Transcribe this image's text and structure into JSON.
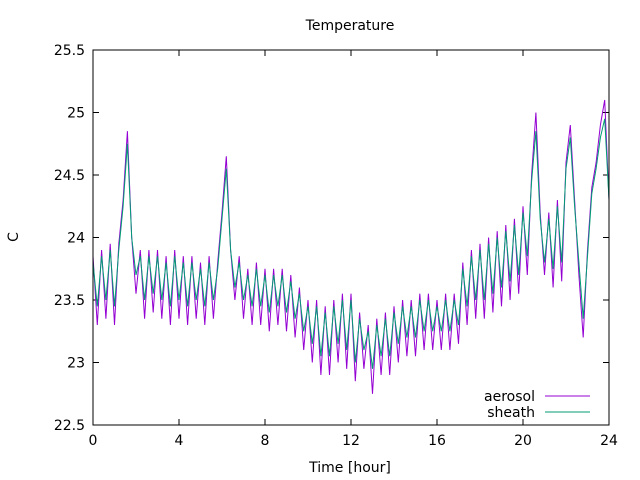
{
  "chart_data": {
    "type": "line",
    "title": "Temperature",
    "xlabel": "Time [hour]",
    "ylabel": "C",
    "xlim": [
      0,
      24
    ],
    "ylim": [
      22.5,
      25.5
    ],
    "xticks": [
      0,
      4,
      8,
      12,
      16,
      20,
      24
    ],
    "yticks": [
      22.5,
      23,
      23.5,
      24,
      24.5,
      25,
      25.5
    ],
    "ytick_labels": [
      "22.5",
      "23",
      "23.5",
      "24",
      "24.5",
      "25",
      "25.5"
    ],
    "legend_position": "bottom-right",
    "x_step": 0.2,
    "series": [
      {
        "name": "aerosol",
        "color": "#9400d3",
        "values": [
          23.85,
          23.3,
          23.9,
          23.35,
          23.95,
          23.3,
          23.95,
          24.3,
          24.85,
          24.0,
          23.55,
          23.9,
          23.35,
          23.9,
          23.4,
          23.9,
          23.35,
          23.85,
          23.3,
          23.9,
          23.35,
          23.85,
          23.3,
          23.85,
          23.35,
          23.8,
          23.3,
          23.85,
          23.35,
          23.8,
          24.2,
          24.65,
          23.9,
          23.5,
          23.85,
          23.35,
          23.75,
          23.3,
          23.8,
          23.3,
          23.75,
          23.25,
          23.75,
          23.3,
          23.75,
          23.25,
          23.7,
          23.2,
          23.6,
          23.1,
          23.5,
          23.0,
          23.5,
          22.9,
          23.45,
          22.9,
          23.5,
          23.0,
          23.55,
          22.95,
          23.55,
          22.85,
          23.4,
          22.95,
          23.3,
          22.75,
          23.35,
          22.9,
          23.4,
          22.9,
          23.45,
          23.0,
          23.5,
          23.05,
          23.5,
          23.05,
          23.55,
          23.1,
          23.55,
          23.1,
          23.5,
          23.1,
          23.55,
          23.1,
          23.55,
          23.15,
          23.8,
          23.3,
          23.9,
          23.35,
          23.95,
          23.35,
          24.0,
          23.4,
          24.05,
          23.45,
          24.1,
          23.5,
          24.15,
          23.55,
          24.25,
          23.7,
          24.5,
          25.0,
          24.2,
          23.7,
          24.2,
          23.6,
          24.3,
          23.65,
          24.6,
          24.9,
          24.3,
          23.7,
          23.2,
          23.9,
          24.4,
          24.6,
          24.9,
          25.1,
          24.3
        ]
      },
      {
        "name": "sheath",
        "color": "#009e73",
        "values": [
          23.8,
          23.45,
          23.85,
          23.5,
          23.9,
          23.45,
          23.9,
          24.25,
          24.75,
          24.0,
          23.7,
          23.85,
          23.5,
          23.85,
          23.55,
          23.85,
          23.5,
          23.8,
          23.45,
          23.85,
          23.5,
          23.8,
          23.45,
          23.8,
          23.5,
          23.75,
          23.45,
          23.8,
          23.5,
          23.75,
          24.15,
          24.55,
          23.9,
          23.6,
          23.8,
          23.5,
          23.7,
          23.45,
          23.75,
          23.45,
          23.7,
          23.4,
          23.7,
          23.45,
          23.7,
          23.4,
          23.65,
          23.35,
          23.55,
          23.25,
          23.45,
          23.15,
          23.45,
          23.05,
          23.4,
          23.05,
          23.45,
          23.15,
          23.5,
          23.1,
          23.5,
          23.0,
          23.35,
          23.1,
          23.25,
          22.95,
          23.3,
          23.05,
          23.35,
          23.05,
          23.4,
          23.15,
          23.45,
          23.2,
          23.45,
          23.2,
          23.5,
          23.25,
          23.5,
          23.25,
          23.45,
          23.25,
          23.5,
          23.25,
          23.5,
          23.3,
          23.75,
          23.45,
          23.85,
          23.5,
          23.9,
          23.5,
          23.95,
          23.55,
          24.0,
          23.6,
          24.05,
          23.65,
          24.1,
          23.7,
          24.2,
          23.85,
          24.45,
          24.85,
          24.15,
          23.8,
          24.15,
          23.75,
          24.25,
          23.8,
          24.55,
          24.8,
          24.25,
          23.8,
          23.35,
          23.85,
          24.35,
          24.55,
          24.8,
          24.95,
          24.3
        ]
      }
    ]
  }
}
